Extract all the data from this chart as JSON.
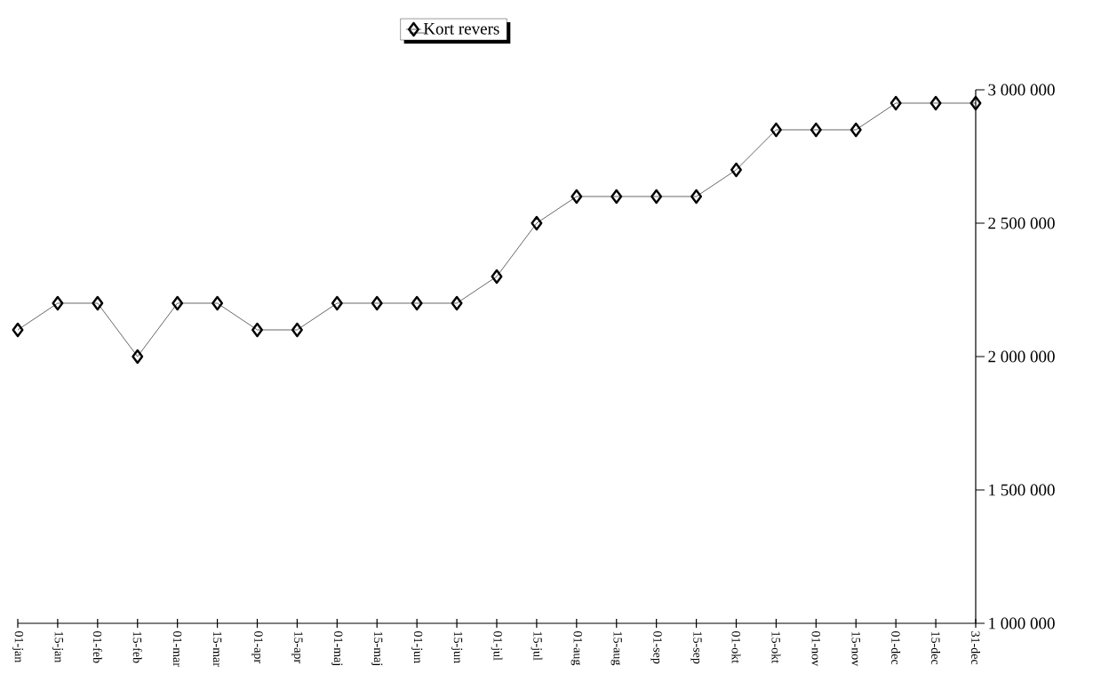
{
  "chart_data": {
    "type": "line",
    "categories": [
      "01-jan",
      "15-jan",
      "01-feb",
      "15-feb",
      "01-mar",
      "15-mar",
      "01-apr",
      "15-apr",
      "01-maj",
      "15-maj",
      "01-jun",
      "15-jun",
      "01-jul",
      "15-jul",
      "01-aug",
      "15-aug",
      "01-sep",
      "15-sep",
      "01-okt",
      "15-okt",
      "01-nov",
      "15-nov",
      "01-dec",
      "15-dec",
      "31-dec"
    ],
    "series": [
      {
        "name": "Kort revers",
        "color": "#000000",
        "values": [
          2100000,
          2200000,
          2200000,
          2000000,
          2200000,
          2200000,
          2100000,
          2100000,
          2200000,
          2200000,
          2200000,
          2200000,
          2300000,
          2500000,
          2600000,
          2600000,
          2600000,
          2600000,
          2700000,
          2850000,
          2850000,
          2850000,
          2950000,
          2950000,
          2950000
        ]
      }
    ],
    "ylim": [
      1000000,
      3000000
    ],
    "yticks": [
      {
        "value": 1000000,
        "label": "1 000 000"
      },
      {
        "value": 1500000,
        "label": "1 500 000"
      },
      {
        "value": 2000000,
        "label": "2 000 000"
      },
      {
        "value": 2500000,
        "label": "2 500 000"
      },
      {
        "value": 3000000,
        "label": "3 000 000"
      }
    ],
    "legend": "top",
    "marker": "diamond",
    "line_style": "solid"
  }
}
